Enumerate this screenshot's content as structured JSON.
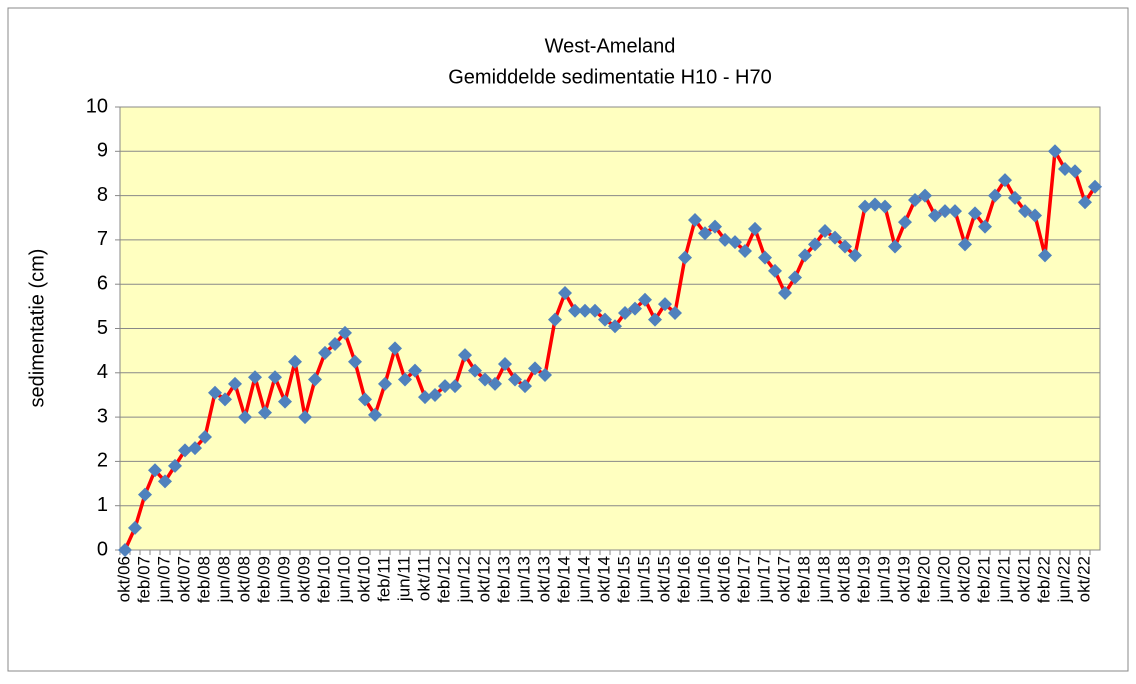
{
  "chart_data": {
    "type": "line",
    "title": "West-Ameland",
    "subtitle": "Gemiddelde sedimentatie H10 - H70",
    "y_label": "sedimentatie (cm)",
    "categories": [
      "okt/06",
      null,
      "feb/07",
      null,
      "jun/07",
      null,
      "okt/07",
      null,
      "feb/08",
      null,
      "jun/08",
      null,
      "okt/08",
      null,
      "feb/09",
      null,
      "jun/09",
      null,
      "okt/09",
      null,
      "feb/10",
      null,
      "jun/10",
      null,
      "okt/10",
      null,
      "feb/11",
      null,
      "jun/11",
      null,
      "okt/11",
      null,
      "feb/12",
      null,
      "jun/12",
      null,
      "okt/12",
      null,
      "feb/13",
      null,
      "jun/13",
      null,
      "okt/13",
      null,
      "feb/14",
      null,
      "jun/14",
      null,
      "okt/14",
      null,
      "feb/15",
      null,
      "jun/15",
      null,
      "okt/15",
      null,
      "feb/16",
      null,
      "jun/16",
      null,
      "okt/16",
      null,
      "feb/17",
      null,
      "jun/17",
      null,
      "okt/17",
      null,
      "feb/18",
      null,
      "jun/18",
      null,
      "okt/18",
      null,
      "feb/19",
      null,
      "jun/19",
      null,
      "okt/19",
      null,
      "feb/20",
      null,
      "jun/20",
      null,
      "okt/20",
      null,
      "feb/21",
      null,
      "jun/21",
      null,
      "okt/21",
      null,
      "feb/22",
      null,
      "jun/22",
      null,
      "okt/22",
      null
    ],
    "series": [
      {
        "color": "#ff0000",
        "marker_color": "#4f81bd",
        "values": [
          0,
          0.5,
          1.25,
          1.8,
          1.55,
          1.9,
          2.25,
          2.3,
          2.55,
          3.55,
          3.4,
          3.75,
          3.0,
          3.9,
          3.1,
          3.9,
          3.35,
          4.25,
          3.0,
          3.85,
          4.45,
          4.65,
          4.9,
          4.25,
          3.4,
          3.05,
          3.75,
          4.55,
          3.85,
          4.05,
          3.45,
          3.5,
          3.7,
          3.7,
          4.4,
          4.05,
          3.85,
          3.75,
          4.2,
          3.85,
          3.7,
          4.1,
          3.95,
          5.2,
          5.8,
          5.4,
          5.4,
          5.4,
          5.2,
          5.05,
          5.35,
          5.45,
          5.65,
          5.2,
          5.55,
          5.35,
          6.6,
          7.45,
          7.15,
          7.3,
          7.0,
          6.95,
          6.75,
          7.25,
          6.6,
          6.3,
          5.8,
          6.15,
          6.65,
          6.9,
          7.2,
          7.05,
          6.85,
          6.65,
          7.75,
          7.8,
          7.75,
          6.85,
          7.4,
          7.9,
          8.0,
          7.55,
          7.65,
          7.65,
          6.9,
          7.6,
          7.3,
          8.0,
          8.35,
          7.95,
          7.65,
          7.55,
          6.65,
          9.0,
          8.6,
          8.55,
          7.85,
          8.2
        ]
      }
    ],
    "ylim": [
      0,
      10
    ],
    "yticks": [
      0,
      1,
      2,
      3,
      4,
      5,
      6,
      7,
      8,
      9,
      10
    ],
    "grid": true,
    "plot_background": "#ffffc0"
  }
}
